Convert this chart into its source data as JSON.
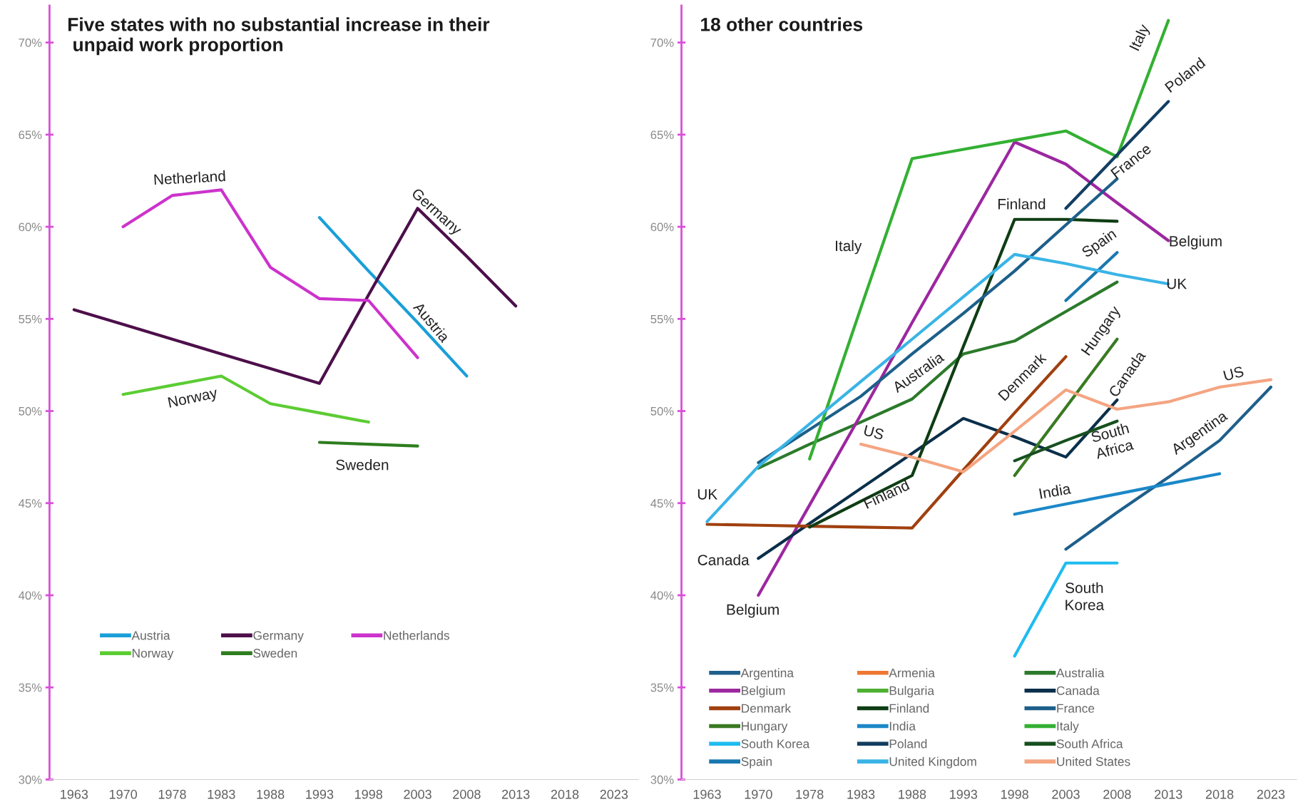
{
  "chart_data": [
    {
      "type": "line",
      "title": "Five states with no substantial increase in their\n unpaid work proportion",
      "categories": [
        "1963",
        "1970",
        "1978",
        "1983",
        "1988",
        "1993",
        "1998",
        "2003",
        "2008",
        "2013",
        "2018",
        "2023"
      ],
      "ylim": [
        30,
        72
      ],
      "yticks": [
        {
          "value": 30,
          "label": "30%"
        },
        {
          "value": 35,
          "label": "35%"
        },
        {
          "value": 40,
          "label": "40%"
        },
        {
          "value": 45,
          "label": "45%"
        },
        {
          "value": 50,
          "label": "50%"
        },
        {
          "value": 55,
          "label": "55%"
        },
        {
          "value": 60,
          "label": "60%"
        },
        {
          "value": 65,
          "label": "65%"
        },
        {
          "value": 70,
          "label": "70%"
        }
      ],
      "grid": false,
      "legend": "bottom left",
      "marker": "none",
      "line_style": "solid",
      "series": [
        {
          "name": "Austria",
          "color": "#1a9fd8",
          "values": [
            null,
            null,
            null,
            null,
            null,
            60.5,
            57.6,
            54.8,
            51.9,
            null,
            null,
            null
          ]
        },
        {
          "name": "Germany",
          "color": "#4d0f4a",
          "values": [
            55.5,
            54.7,
            53.9,
            53.1,
            52.3,
            51.5,
            56.3,
            61.0,
            58.4,
            55.7,
            null,
            null
          ]
        },
        {
          "name": "Netherlands",
          "color": "#cc33cc",
          "values": [
            null,
            60.0,
            61.7,
            62.0,
            57.8,
            56.1,
            56.0,
            52.9,
            null,
            null,
            null,
            null
          ]
        },
        {
          "name": "Norway",
          "color": "#5ccc33",
          "values": [
            null,
            50.9,
            51.4,
            51.9,
            50.4,
            49.9,
            49.4,
            null,
            null,
            null,
            null,
            null
          ]
        },
        {
          "name": "Sweden",
          "color": "#2e7d1f",
          "values": [
            null,
            null,
            null,
            null,
            null,
            48.3,
            48.2,
            48.1,
            null,
            null,
            null,
            null
          ]
        }
      ],
      "annotations": [
        "Netherland",
        "Germany",
        "Austria",
        "Norway",
        "Sweden"
      ]
    },
    {
      "type": "line",
      "title": "18 other countries",
      "categories": [
        "1963",
        "1970",
        "1978",
        "1983",
        "1988",
        "1993",
        "1998",
        "2003",
        "2008",
        "2013",
        "2018",
        "2023"
      ],
      "ylim": [
        30,
        72
      ],
      "yticks": [
        {
          "value": 30,
          "label": "30%"
        },
        {
          "value": 35,
          "label": "35%"
        },
        {
          "value": 40,
          "label": "40%"
        },
        {
          "value": 45,
          "label": "45%"
        },
        {
          "value": 50,
          "label": "50%"
        },
        {
          "value": 55,
          "label": "55%"
        },
        {
          "value": 60,
          "label": "60%"
        },
        {
          "value": 65,
          "label": "65%"
        },
        {
          "value": 70,
          "label": "70%"
        }
      ],
      "grid": false,
      "legend": "bottom left",
      "marker": "none",
      "line_style": "solid",
      "series": [
        {
          "name": "Argentina",
          "color": "#1f5f8b",
          "values": [
            null,
            null,
            null,
            null,
            null,
            null,
            null,
            42.5,
            44.5,
            46.4,
            48.4,
            51.3
          ]
        },
        {
          "name": "Armenia",
          "color": "#ee7733",
          "values": [
            null,
            null,
            null,
            null,
            null,
            null,
            null,
            null,
            null,
            null,
            null,
            null
          ]
        },
        {
          "name": "Australia",
          "color": "#2b7a2b",
          "values": [
            null,
            46.9,
            48.2,
            49.4,
            50.65,
            53.1,
            53.8,
            55.4,
            57.0,
            null,
            null,
            null
          ]
        },
        {
          "name": "Belgium",
          "color": "#9c27a0",
          "values": [
            null,
            40.0,
            44.9,
            49.8,
            54.8,
            59.7,
            64.6,
            63.4,
            61.3,
            59.25,
            null,
            null
          ]
        },
        {
          "name": "Bulgaria",
          "color": "#4cb030",
          "values": [
            null,
            null,
            null,
            null,
            null,
            null,
            null,
            null,
            null,
            null,
            null,
            null
          ]
        },
        {
          "name": "Canada",
          "color": "#0b2f4a",
          "values": [
            null,
            42.0,
            43.9,
            45.8,
            47.7,
            49.6,
            48.6,
            47.5,
            50.6,
            null,
            null,
            null
          ]
        },
        {
          "name": "Denmark",
          "color": "#a0400f",
          "values": [
            43.85,
            43.8,
            43.75,
            43.7,
            43.65,
            46.8,
            49.9,
            52.95,
            null,
            null,
            null,
            null
          ]
        },
        {
          "name": "Finland",
          "color": "#0f3d14",
          "values": [
            null,
            null,
            43.7,
            45.1,
            46.5,
            53.5,
            60.4,
            60.4,
            60.3,
            null,
            null,
            null
          ]
        },
        {
          "name": "France",
          "color": "#1d5f8a",
          "values": [
            null,
            47.2,
            49.0,
            50.8,
            53.1,
            55.3,
            57.6,
            60.1,
            62.6,
            null,
            null,
            null
          ]
        },
        {
          "name": "Hungary",
          "color": "#3a7a22",
          "values": [
            null,
            null,
            null,
            null,
            null,
            null,
            46.5,
            50.2,
            53.9,
            null,
            null,
            null
          ]
        },
        {
          "name": "India",
          "color": "#1b88c8",
          "values": [
            null,
            null,
            null,
            null,
            null,
            null,
            44.4,
            44.95,
            45.5,
            46.05,
            46.6,
            null
          ]
        },
        {
          "name": "Italy",
          "color": "#33b033",
          "values": [
            null,
            null,
            47.4,
            55.6,
            63.7,
            64.2,
            64.7,
            65.2,
            63.8,
            71.2,
            null,
            null
          ]
        },
        {
          "name": "South Korea",
          "color": "#1fbcf0",
          "values": [
            null,
            null,
            null,
            null,
            null,
            null,
            36.7,
            41.75,
            41.75,
            null,
            null,
            null
          ]
        },
        {
          "name": "Poland",
          "color": "#133e62",
          "values": [
            null,
            null,
            null,
            null,
            null,
            null,
            null,
            61.0,
            63.9,
            66.8,
            null,
            null
          ]
        },
        {
          "name": "South Africa",
          "color": "#17501f",
          "values": [
            null,
            null,
            null,
            null,
            null,
            null,
            47.3,
            48.4,
            49.45,
            null,
            null,
            null
          ]
        },
        {
          "name": "Spain",
          "color": "#1a78b0",
          "values": [
            null,
            null,
            null,
            null,
            null,
            null,
            null,
            56.0,
            58.6,
            null,
            null,
            null
          ]
        },
        {
          "name": "United Kingdom",
          "color": "#3ab4e6",
          "values": [
            44.0,
            47.0,
            49.3,
            51.6,
            53.9,
            56.2,
            58.5,
            58.0,
            57.4,
            56.9,
            null,
            null
          ]
        },
        {
          "name": "United States",
          "color": "#f4a582",
          "values": [
            null,
            null,
            null,
            48.2,
            47.5,
            46.7,
            48.9,
            51.15,
            50.1,
            50.5,
            51.3,
            51.7
          ]
        }
      ],
      "annotations": [
        "Italy",
        "Poland",
        "France",
        "Finland",
        "Italy",
        "Belgium",
        "Spain",
        "UK",
        "Australia",
        "Denmark",
        "Hungary",
        "Canada",
        "US",
        "US",
        "South\nAfrica",
        "Argentina",
        "India",
        "UK",
        "Finland",
        "Canada",
        "Belgium",
        "South\nKorea"
      ]
    }
  ]
}
